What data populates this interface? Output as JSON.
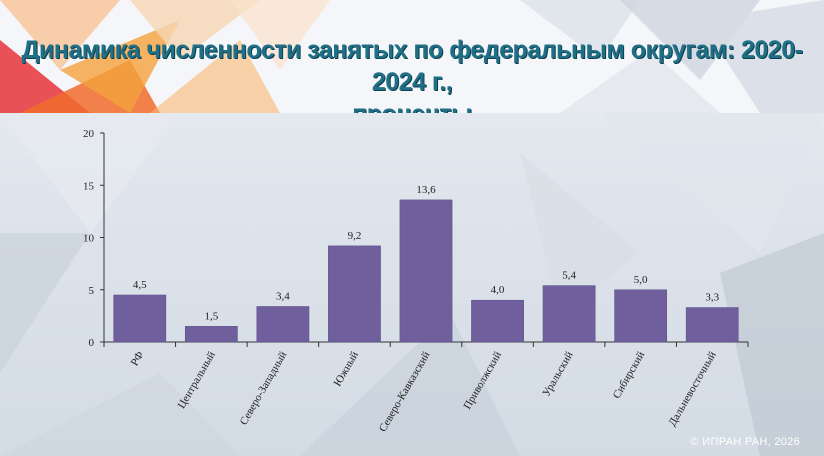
{
  "title_line1": "Динамика численности занятых по федеральным округам: 2020-2024 г.,",
  "title_line2": "проценты",
  "footer": "© ИПРАН РАН, 2026",
  "colors": {
    "bar": "#6f5f9c",
    "bar_edge": "#5d4f88",
    "title": "#1f6f86",
    "axis": "#333333"
  },
  "chart_data": {
    "type": "bar",
    "categories": [
      "РФ",
      "Центральный",
      "Северо-Западный",
      "Южный",
      "Северо-Кавказский",
      "Приволжский",
      "Уральский",
      "Сибирский",
      "Дальневосточный"
    ],
    "values": [
      4.5,
      1.5,
      3.4,
      9.2,
      13.6,
      4.0,
      5.4,
      5.0,
      3.3
    ],
    "value_labels": [
      "4,5",
      "1,5",
      "3,4",
      "9,2",
      "13,6",
      "4,0",
      "5,4",
      "5,0",
      "3,3"
    ],
    "yticks": [
      0,
      5,
      10,
      15,
      20
    ],
    "ylim": [
      0,
      20
    ],
    "grid": false,
    "legend": "none"
  }
}
